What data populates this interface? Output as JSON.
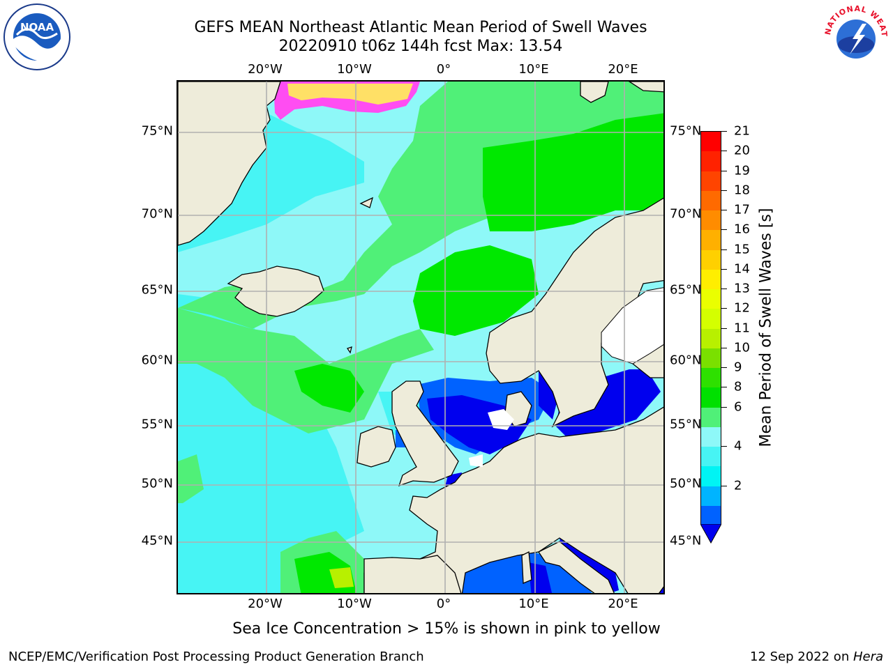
{
  "header": {
    "title_line1": "GEFS MEAN Northeast Atlantic Mean Period of Swell Waves",
    "title_line2": "20220910 t06z 144h fcst   Max: 13.54"
  },
  "map": {
    "lon_labels": [
      "20°W",
      "10°W",
      "0°",
      "10°E",
      "20°E"
    ],
    "lat_labels": [
      "75°N",
      "70°N",
      "65°N",
      "60°N",
      "55°N",
      "50°N",
      "45°N"
    ],
    "land_color": "#eeecda",
    "ocean_colors": {
      "swell_8_9": "#8ef8f8",
      "swell_6_8": "#47f4f4",
      "swell_9_10": "#50f078",
      "swell_10_11": "#00e800",
      "swell_2_4": "#0062ff",
      "swell_below_2": "#0000ee",
      "sea_ice": "#ff4df2"
    }
  },
  "colorbar": {
    "label": "Mean Period of Swell Waves [s]",
    "ticks": [
      "21",
      "20",
      "19",
      "18",
      "17",
      "16",
      "15",
      "14",
      "13",
      "12",
      "11",
      "10",
      "9",
      "8",
      "6",
      "4",
      "2"
    ],
    "colors_top_to_bottom": [
      "#ff0000",
      "#ff2200",
      "#ff4400",
      "#ff6a00",
      "#ff8c00",
      "#ffb000",
      "#ffd000",
      "#ffee00",
      "#eaff00",
      "#d4ff00",
      "#b8f000",
      "#7ae000",
      "#2ee000",
      "#00e000",
      "#50f078",
      "#8ef8f8",
      "#47f4f4",
      "#00f4f4",
      "#00b4ff",
      "#0062ff"
    ],
    "under_color": "#0000ee"
  },
  "footnote": "Sea Ice Concentration > 15% is shown in pink to yellow",
  "footer": {
    "left": "NCEP/EMC/Verification Post Processing Product Generation Branch",
    "right_date": "12 Sep 2022 on ",
    "right_host": "Hera"
  },
  "logos": {
    "noaa_text": "NOAA",
    "nws_text": "NATIONAL WEATHER SERVICE"
  }
}
